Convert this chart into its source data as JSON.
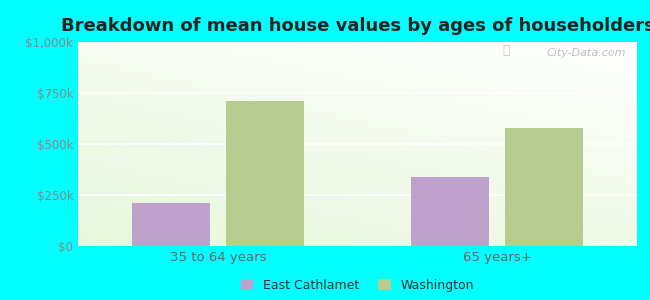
{
  "title": "Breakdown of mean house values by ages of householders",
  "categories": [
    "35 to 64 years",
    "65 years+"
  ],
  "series": {
    "East Cathlamet": [
      210000,
      340000
    ],
    "Washington": [
      710000,
      580000
    ]
  },
  "bar_colors": {
    "East Cathlamet": "#c0a0cc",
    "Washington": "#b8cc90"
  },
  "ylim": [
    0,
    1000000
  ],
  "yticks": [
    0,
    250000,
    500000,
    750000,
    1000000
  ],
  "ytick_labels": [
    "$0",
    "$250k",
    "$500k",
    "$750k",
    "$1,000k"
  ],
  "background_color": "#00ffff",
  "watermark": "City-Data.com",
  "bar_width": 0.28,
  "title_fontsize": 13,
  "axis_label_fontsize": 9.5,
  "tick_fontsize": 8.5,
  "legend_fontsize": 9
}
